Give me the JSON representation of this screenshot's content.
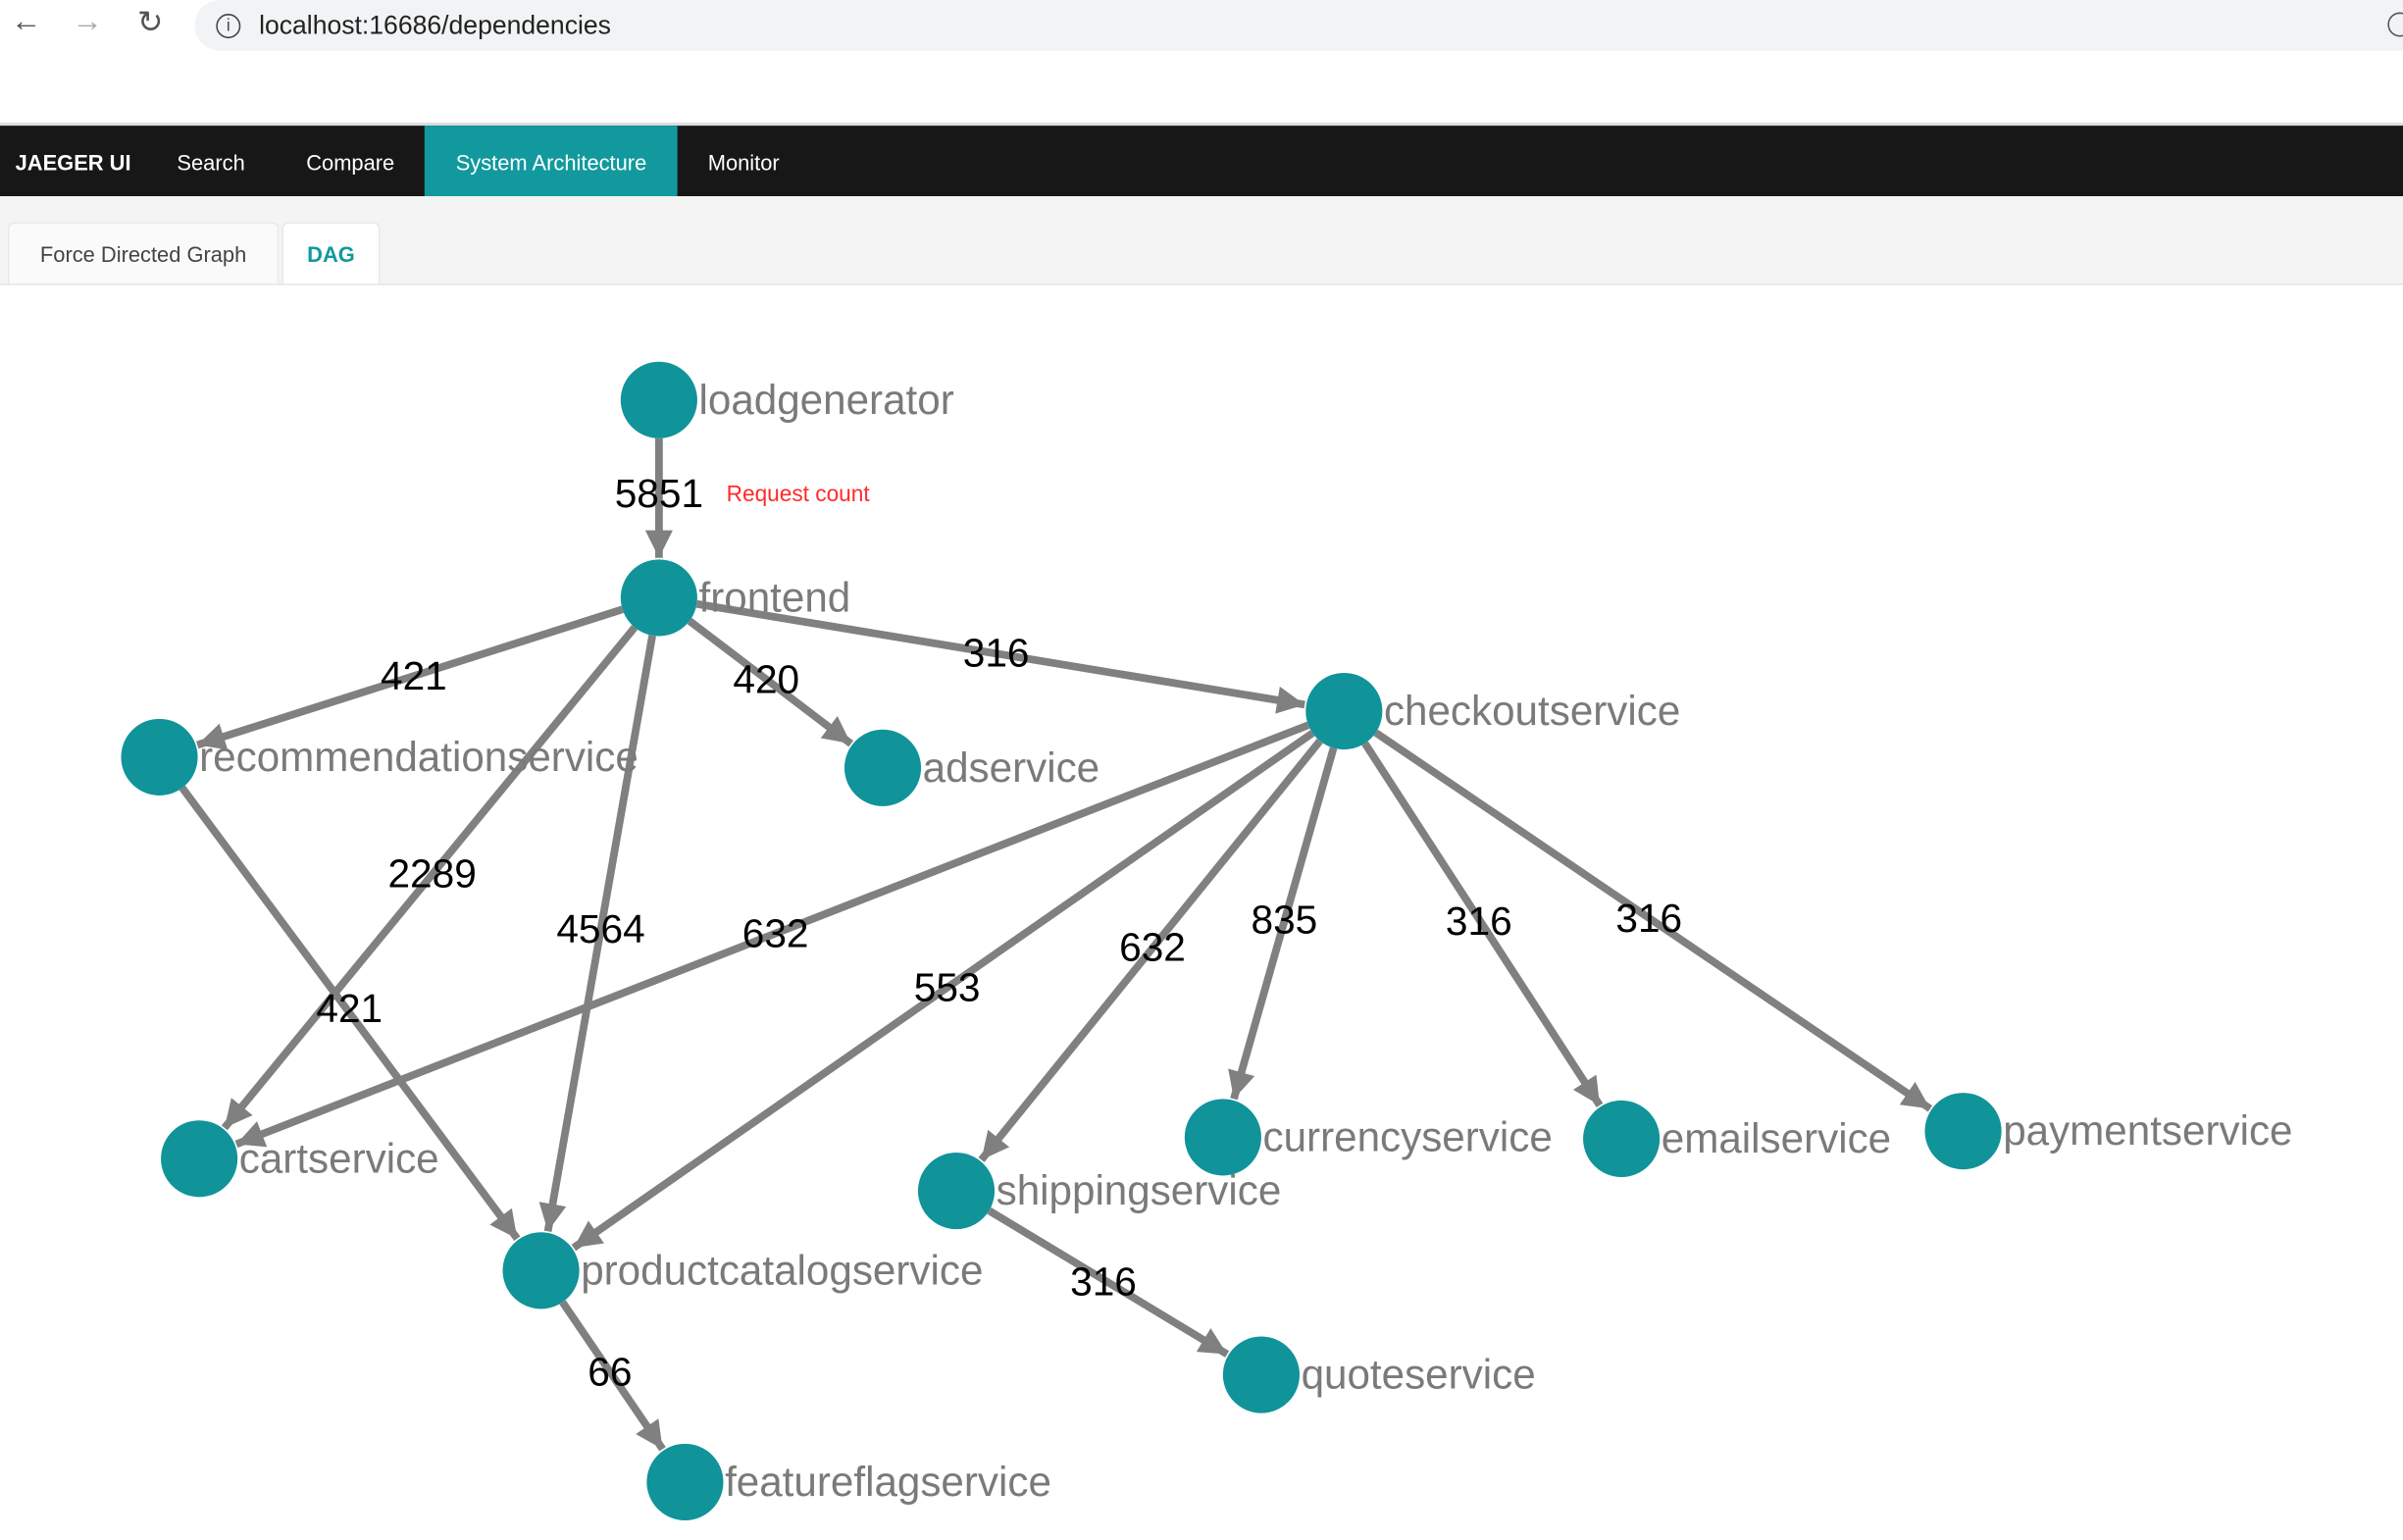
{
  "browser": {
    "url": "localhost:16686/dependencies",
    "back_icon": "arrow-left-icon",
    "forward_icon": "arrow-right-icon",
    "reload_icon": "reload-icon"
  },
  "nav": {
    "brand": "JAEGER UI",
    "items": [
      {
        "label": "Search"
      },
      {
        "label": "Compare"
      },
      {
        "label": "System Architecture",
        "active": true
      },
      {
        "label": "Monitor"
      }
    ]
  },
  "tabs": [
    {
      "label": "Force Directed Graph"
    },
    {
      "label": "DAG",
      "active": true
    }
  ],
  "colors": {
    "node": "#11939a",
    "edge": "#808080",
    "accent": "#11999e",
    "annotation": "#ff2a2a"
  },
  "graph": {
    "annotation": "Request count",
    "nodes": [
      {
        "id": "loadgenerator"
      },
      {
        "id": "frontend"
      },
      {
        "id": "recommendationservice"
      },
      {
        "id": "adservice"
      },
      {
        "id": "checkoutservice"
      },
      {
        "id": "cartservice"
      },
      {
        "id": "productcatalogservice"
      },
      {
        "id": "shippingservice"
      },
      {
        "id": "currencyservice"
      },
      {
        "id": "emailservice"
      },
      {
        "id": "paymentservice"
      },
      {
        "id": "quoteservice"
      },
      {
        "id": "featureflagservice"
      }
    ],
    "edges": [
      {
        "from": "loadgenerator",
        "to": "frontend",
        "count": "5851"
      },
      {
        "from": "frontend",
        "to": "recommendationservice",
        "count": "421"
      },
      {
        "from": "frontend",
        "to": "adservice",
        "count": "420"
      },
      {
        "from": "frontend",
        "to": "checkoutservice",
        "count": "316"
      },
      {
        "from": "frontend",
        "to": "cartservice",
        "count": "2289"
      },
      {
        "from": "frontend",
        "to": "productcatalogservice",
        "count": "4564"
      },
      {
        "from": "recommendationservice",
        "to": "productcatalogservice",
        "count": "421"
      },
      {
        "from": "checkoutservice",
        "to": "cartservice",
        "count": "632"
      },
      {
        "from": "checkoutservice",
        "to": "productcatalogservice",
        "count": "553"
      },
      {
        "from": "checkoutservice",
        "to": "shippingservice",
        "count": "632"
      },
      {
        "from": "checkoutservice",
        "to": "currencyservice",
        "count": "835"
      },
      {
        "from": "checkoutservice",
        "to": "emailservice",
        "count": "316"
      },
      {
        "from": "checkoutservice",
        "to": "paymentservice",
        "count": "316"
      },
      {
        "from": "shippingservice",
        "to": "quoteservice",
        "count": "316"
      },
      {
        "from": "productcatalogservice",
        "to": "featureflagservice",
        "count": "66"
      }
    ]
  }
}
